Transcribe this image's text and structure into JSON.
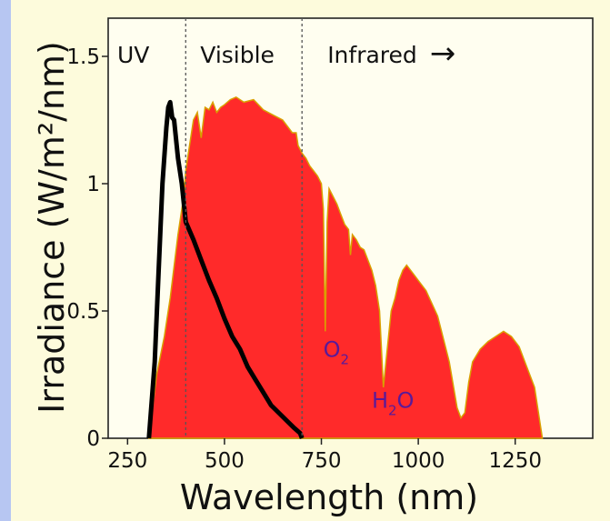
{
  "chart_data": {
    "type": "area",
    "xlabel": "Wavelength (nm)",
    "ylabel": "Irradiance (W/m²/nm)",
    "xlim": [
      200,
      1450
    ],
    "ylim": [
      0,
      1.65
    ],
    "x_ticks": [
      250,
      500,
      750,
      1000,
      1250
    ],
    "y_ticks": [
      0,
      0.5,
      1,
      1.5
    ],
    "x_tick_labels": [
      "250",
      "500",
      "750",
      "1000",
      "1250"
    ],
    "y_tick_labels": [
      "0",
      "0.5",
      "1",
      "1.5"
    ],
    "regions": [
      {
        "label": "UV",
        "x_end": 400
      },
      {
        "label": "Visible",
        "x_end": 700
      },
      {
        "label": "Infrared",
        "arrow": "→"
      }
    ],
    "dividers_x": [
      400,
      700
    ],
    "annotations": [
      {
        "text": "O",
        "sub": "2",
        "x": 755,
        "y": 0.32
      },
      {
        "text": "H",
        "sub": "2",
        "tail": "O",
        "x": 880,
        "y": 0.12
      }
    ],
    "series": [
      {
        "color": "#ff2a2a",
        "edge_color": "#d9a000",
        "x": [
          305,
          325,
          345,
          360,
          380,
          395,
          400,
          410,
          420,
          430,
          440,
          450,
          460,
          470,
          480,
          490,
          500,
          515,
          530,
          550,
          575,
          600,
          625,
          650,
          675,
          685,
          690,
          700,
          710,
          720,
          730,
          740,
          750,
          755,
          760,
          765,
          770,
          780,
          790,
          800,
          810,
          820,
          825,
          830,
          840,
          850,
          860,
          870,
          880,
          890,
          900,
          910,
          920,
          930,
          940,
          950,
          960,
          970,
          980,
          990,
          1000,
          1020,
          1050,
          1080,
          1100,
          1110,
          1120,
          1130,
          1140,
          1160,
          1180,
          1200,
          1220,
          1240,
          1260,
          1280,
          1300,
          1320
        ],
        "values": [
          0,
          0.25,
          0.4,
          0.55,
          0.8,
          0.95,
          1.05,
          1.15,
          1.25,
          1.28,
          1.18,
          1.3,
          1.29,
          1.32,
          1.28,
          1.3,
          1.31,
          1.33,
          1.34,
          1.32,
          1.33,
          1.29,
          1.27,
          1.25,
          1.2,
          1.2,
          1.15,
          1.12,
          1.1,
          1.07,
          1.05,
          1.03,
          1.0,
          0.9,
          0.42,
          0.85,
          0.98,
          0.95,
          0.92,
          0.88,
          0.84,
          0.82,
          0.72,
          0.8,
          0.78,
          0.75,
          0.74,
          0.7,
          0.66,
          0.6,
          0.5,
          0.2,
          0.35,
          0.5,
          0.55,
          0.62,
          0.66,
          0.68,
          0.66,
          0.64,
          0.62,
          0.58,
          0.48,
          0.3,
          0.12,
          0.08,
          0.1,
          0.22,
          0.3,
          0.35,
          0.38,
          0.4,
          0.42,
          0.4,
          0.36,
          0.28,
          0.2,
          0
        ]
      },
      {
        "color": "#000000",
        "x": [
          305,
          320,
          330,
          340,
          350,
          355,
          360,
          365,
          370,
          380,
          390,
          400,
          420,
          440,
          460,
          480,
          500,
          520,
          540,
          560,
          580,
          600,
          620,
          640,
          660,
          680,
          695,
          700
        ],
        "values": [
          0,
          0.3,
          0.65,
          1.0,
          1.22,
          1.3,
          1.32,
          1.26,
          1.25,
          1.1,
          1.0,
          0.85,
          0.78,
          0.7,
          0.62,
          0.55,
          0.47,
          0.4,
          0.35,
          0.28,
          0.23,
          0.18,
          0.13,
          0.1,
          0.07,
          0.04,
          0.02,
          0
        ]
      }
    ]
  }
}
